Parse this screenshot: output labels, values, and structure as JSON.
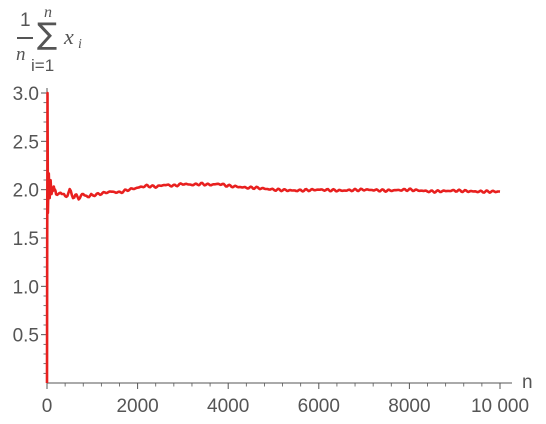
{
  "chart_data": {
    "type": "line",
    "title": "",
    "xlabel": "n",
    "ylabel": {
      "fraction_numerator": "1",
      "fraction_denominator": "n",
      "sum_upper": "n",
      "sum_symbol": "∑",
      "sum_lower": "i=1",
      "term": "x",
      "term_subscript": "i"
    },
    "xlim": [
      0,
      10000
    ],
    "ylim": [
      0,
      3.0
    ],
    "x_ticks": [
      0,
      2000,
      4000,
      6000,
      8000,
      10000
    ],
    "x_tick_labels": [
      "0",
      "2000",
      "4000",
      "6000",
      "8000",
      "10 000"
    ],
    "y_ticks": [
      0.5,
      1.0,
      1.5,
      2.0,
      2.5,
      3.0
    ],
    "y_tick_labels": [
      "0.5",
      "1.0",
      "1.5",
      "2.0",
      "2.5",
      "3.0"
    ],
    "grid": false,
    "legend": "none",
    "series": [
      {
        "color": "#e8201f",
        "x": [
          1,
          10,
          20,
          40,
          60,
          80,
          100,
          150,
          200,
          300,
          400,
          500,
          600,
          700,
          800,
          900,
          1000,
          1200,
          1400,
          1600,
          1800,
          2000,
          2200,
          2400,
          2600,
          2800,
          3000,
          3200,
          3400,
          3600,
          3800,
          4000,
          4200,
          4400,
          4600,
          4800,
          5000,
          5500,
          6000,
          6500,
          7000,
          7500,
          8000,
          8500,
          9000,
          9500,
          10000
        ],
        "y": [
          0.0,
          3.0,
          1.75,
          2.15,
          1.92,
          2.1,
          1.98,
          2.02,
          1.95,
          1.97,
          1.93,
          1.98,
          1.93,
          1.92,
          1.95,
          1.93,
          1.94,
          1.96,
          1.98,
          1.97,
          2.0,
          2.02,
          2.04,
          2.03,
          2.05,
          2.04,
          2.06,
          2.05,
          2.06,
          2.05,
          2.06,
          2.04,
          2.03,
          2.02,
          2.02,
          2.01,
          2.0,
          1.99,
          2.0,
          1.99,
          2.0,
          1.99,
          2.0,
          1.98,
          1.99,
          1.98,
          1.98
        ]
      }
    ]
  }
}
